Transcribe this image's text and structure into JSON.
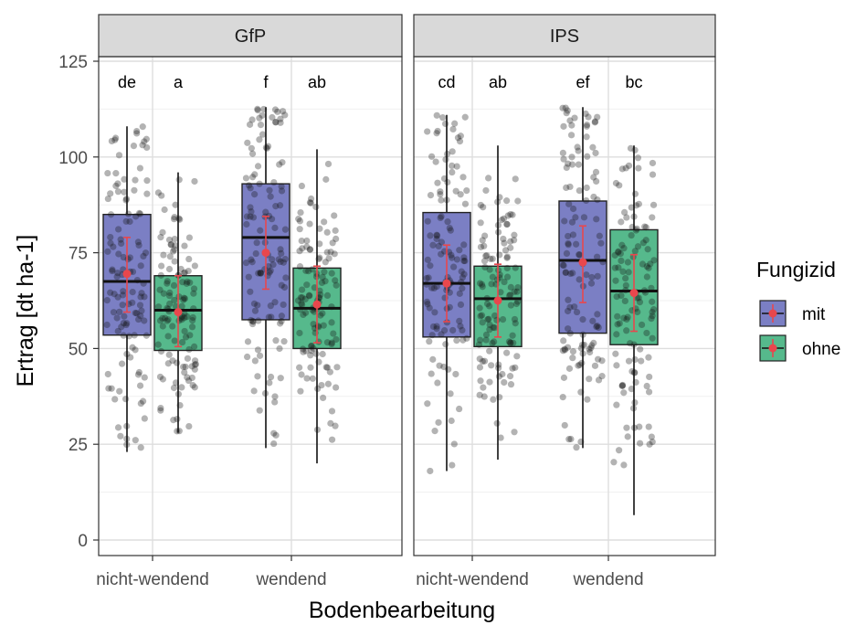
{
  "chart_data": {
    "type": "box",
    "xlabel": "Bodenbearbeitung",
    "ylabel": "Ertrag [dt ha-1]",
    "ylim": [
      -4,
      125
    ],
    "yticks": [
      0,
      25,
      50,
      75,
      100,
      125
    ],
    "categories": [
      "nicht-wendend",
      "wendend"
    ],
    "legend": {
      "title": "Fungizid",
      "placement": "right",
      "entries": [
        {
          "name": "mit",
          "color": "#7b7fc4"
        },
        {
          "name": "ohne",
          "color": "#56b98c"
        }
      ]
    },
    "grid": true,
    "mean_color": "#e8474d",
    "panels": [
      {
        "title": "GfP",
        "boxes": [
          {
            "category": "nicht-wendend",
            "group": "mit",
            "min": 23,
            "q1": 53.5,
            "median": 67.5,
            "q3": 85,
            "max": 108,
            "mean": 69.5,
            "sd_low": 59.5,
            "sd_high": 79,
            "letter": "de"
          },
          {
            "category": "nicht-wendend",
            "group": "ohne",
            "min": 28,
            "q1": 49.5,
            "median": 60,
            "q3": 69,
            "max": 96,
            "mean": 59.5,
            "sd_low": 50.5,
            "sd_high": 69,
            "letter": "a"
          },
          {
            "category": "wendend",
            "group": "mit",
            "min": 24,
            "q1": 57.5,
            "median": 79,
            "q3": 93,
            "max": 113,
            "mean": 75,
            "sd_low": 65.5,
            "sd_high": 84.5,
            "letter": "f"
          },
          {
            "category": "wendend",
            "group": "ohne",
            "min": 20,
            "q1": 50,
            "median": 60.5,
            "q3": 71,
            "max": 102,
            "mean": 61.5,
            "sd_low": 51.5,
            "sd_high": 71.5,
            "letter": "ab"
          }
        ]
      },
      {
        "title": "IPS",
        "boxes": [
          {
            "category": "nicht-wendend",
            "group": "mit",
            "min": 18,
            "q1": 53,
            "median": 67,
            "q3": 85.5,
            "max": 111,
            "mean": 67,
            "sd_low": 57,
            "sd_high": 77,
            "letter": "cd"
          },
          {
            "category": "nicht-wendend",
            "group": "ohne",
            "min": 21,
            "q1": 50.5,
            "median": 63,
            "q3": 71.5,
            "max": 103,
            "mean": 62.5,
            "sd_low": 53,
            "sd_high": 72,
            "letter": "ab"
          },
          {
            "category": "wendend",
            "group": "mit",
            "min": 24,
            "q1": 54,
            "median": 73,
            "q3": 88.5,
            "max": 113,
            "mean": 72.5,
            "sd_low": 62,
            "sd_high": 82,
            "letter": "ef"
          },
          {
            "category": "wendend",
            "group": "ohne",
            "min": 6.5,
            "q1": 51,
            "median": 65,
            "q3": 81,
            "max": 103,
            "mean": 64.5,
            "sd_low": 54.5,
            "sd_high": 74.5,
            "letter": "bc"
          }
        ]
      }
    ]
  }
}
